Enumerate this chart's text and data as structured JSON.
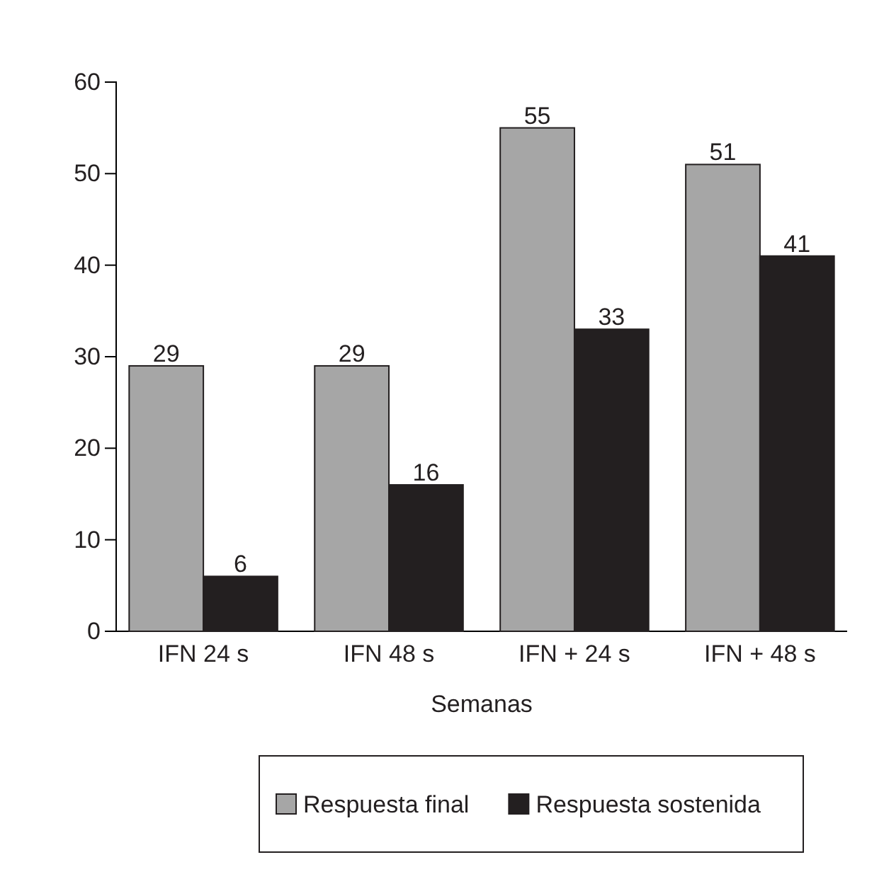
{
  "chart_data": {
    "type": "bar",
    "xlabel": "Semanas",
    "categories": [
      "IFN 24 s",
      "IFN 48 s",
      "IFN + 24 s",
      "IFN + 48 s"
    ],
    "series": [
      {
        "name": "Respuesta final",
        "color": "#a6a6a6",
        "values": [
          29,
          29,
          55,
          51
        ]
      },
      {
        "name": "Respuesta sostenida",
        "color": "#231f20",
        "values": [
          6,
          16,
          33,
          41
        ]
      }
    ],
    "ylim": [
      0,
      60
    ],
    "yticks": [
      0,
      10,
      20,
      30,
      40,
      50,
      60
    ],
    "data_labels": true,
    "grid": false,
    "legend": "bottom"
  }
}
